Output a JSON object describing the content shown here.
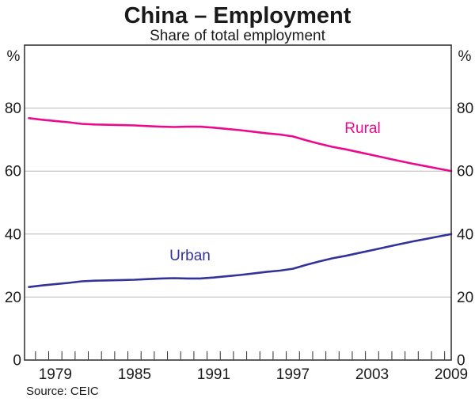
{
  "title": "China – Employment",
  "subtitle": "Share of total employment",
  "source": "Source: CEIC",
  "axis": {
    "unit_left": "%",
    "unit_right": "%",
    "yticks": [
      0,
      20,
      40,
      60,
      80
    ],
    "xlabels": [
      1979,
      1985,
      1991,
      1997,
      2003,
      2009
    ]
  },
  "colors": {
    "rural": "#ec0a8c",
    "urban": "#32329b",
    "grid": "#b8b8b8",
    "frame": "#2b2b2b",
    "text": "#1a1a1a"
  },
  "chart_data": {
    "type": "line",
    "title": "China – Employment",
    "subtitle": "Share of total employment",
    "ylabel": "%",
    "ylim": [
      0,
      100
    ],
    "grid": "horizontal",
    "x": [
      1977,
      1978,
      1979,
      1980,
      1981,
      1982,
      1983,
      1984,
      1985,
      1986,
      1987,
      1988,
      1989,
      1990,
      1991,
      1992,
      1993,
      1994,
      1995,
      1996,
      1997,
      1998,
      1999,
      2000,
      2001,
      2002,
      2003,
      2004,
      2005,
      2006,
      2007,
      2008,
      2009
    ],
    "series": [
      {
        "name": "Rural",
        "color": "#ec0a8c",
        "values": [
          76.8,
          76.3,
          75.9,
          75.5,
          75.0,
          74.8,
          74.7,
          74.6,
          74.5,
          74.3,
          74.1,
          74.0,
          74.1,
          74.1,
          73.8,
          73.4,
          73.0,
          72.5,
          72.0,
          71.6,
          71.0,
          69.8,
          68.7,
          67.7,
          66.9,
          66.0,
          65.1,
          64.2,
          63.3,
          62.4,
          61.6,
          60.8,
          60.0
        ]
      },
      {
        "name": "Urban",
        "color": "#32329b",
        "values": [
          23.2,
          23.7,
          24.1,
          24.5,
          25.0,
          25.2,
          25.3,
          25.4,
          25.5,
          25.7,
          25.9,
          26.0,
          25.9,
          25.9,
          26.2,
          26.6,
          27.0,
          27.5,
          28.0,
          28.4,
          29.0,
          30.2,
          31.3,
          32.3,
          33.1,
          34.0,
          34.9,
          35.8,
          36.7,
          37.6,
          38.4,
          39.2,
          40.0
        ]
      }
    ],
    "annotations": [
      {
        "text": "Rural",
        "color": "#ec0a8c"
      },
      {
        "text": "Urban",
        "color": "#32329b"
      }
    ]
  }
}
